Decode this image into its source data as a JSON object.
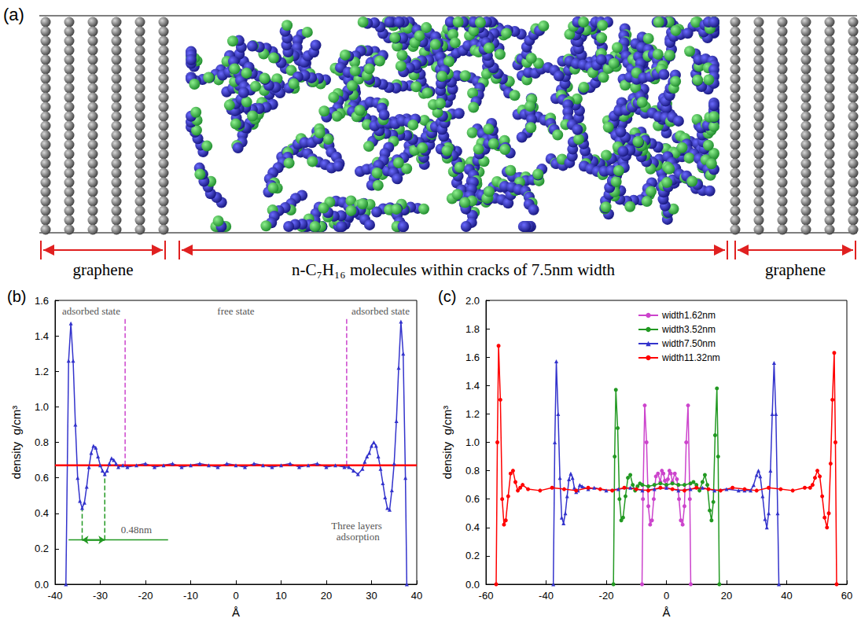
{
  "diagram": {
    "label": "(a)",
    "left_label": "graphene",
    "middle_label": "n-C₇H₁₆ molecules within cracks of 7.5nm width",
    "right_label": "graphene"
  },
  "chart_data": [
    {
      "panel": "(b)",
      "type": "line",
      "x_label": "Å",
      "y_label": "density  g/cm³",
      "xlim": [
        -40,
        40
      ],
      "xticks": [
        -40,
        -30,
        -20,
        -10,
        0,
        10,
        20,
        30,
        40
      ],
      "ylim": [
        0,
        1.6
      ],
      "yticks": [
        {
          "value": 0,
          "label": "0.0"
        },
        0.2,
        0.4,
        0.6,
        0.8,
        {
          "value": 1,
          "label": "1.0"
        },
        1.2,
        1.4,
        1.6
      ],
      "grid": false,
      "series": [
        {
          "color": "#3333cc",
          "marker": "triangle",
          "x": [
            -37.6,
            -37,
            -36.5,
            -36,
            -35.5,
            -35,
            -34.5,
            -34,
            -33.5,
            -33,
            -32.5,
            -32,
            -31.5,
            -31,
            -30.5,
            -30,
            -29.5,
            -29,
            -28.5,
            -28,
            -27.5,
            -27,
            -26.5,
            -26,
            -25,
            -24,
            -22,
            -20,
            -18,
            -16,
            -14,
            -12,
            -10,
            -8,
            -6,
            -4,
            -2,
            0,
            2,
            4,
            6,
            8,
            10,
            12,
            14,
            16,
            18,
            20,
            22,
            24,
            25,
            26,
            27,
            28,
            28.5,
            29,
            29.5,
            30,
            30.5,
            31,
            31.5,
            32,
            32.5,
            33,
            33.5,
            34,
            34.5,
            35,
            35.5,
            36,
            36.5,
            37,
            37.5,
            37.8
          ],
          "values": [
            0,
            1.26,
            1.47,
            1.26,
            0.9,
            0.6,
            0.47,
            0.43,
            0.46,
            0.55,
            0.66,
            0.74,
            0.78,
            0.77,
            0.72,
            0.67,
            0.64,
            0.62,
            0.64,
            0.68,
            0.71,
            0.7,
            0.68,
            0.66,
            0.67,
            0.66,
            0.67,
            0.68,
            0.66,
            0.67,
            0.68,
            0.66,
            0.67,
            0.68,
            0.67,
            0.66,
            0.68,
            0.67,
            0.66,
            0.68,
            0.67,
            0.66,
            0.67,
            0.68,
            0.66,
            0.67,
            0.68,
            0.66,
            0.67,
            0.66,
            0.66,
            0.64,
            0.62,
            0.65,
            0.69,
            0.72,
            0.74,
            0.78,
            0.8,
            0.78,
            0.72,
            0.65,
            0.57,
            0.49,
            0.43,
            0.42,
            0.53,
            0.68,
            0.92,
            1.22,
            1.48,
            1.3,
            0.6,
            0
          ]
        },
        {
          "color": "#ff0000",
          "marker": "none",
          "x": [
            -40,
            40
          ],
          "values": [
            0.67,
            0.67
          ]
        }
      ],
      "annotations": [
        {
          "text": "adsorbed state",
          "x": -32,
          "y": 1.54
        },
        {
          "text": "free state",
          "x": 0,
          "y": 1.54
        },
        {
          "text": "adsorbed state",
          "x": 32,
          "y": 1.54
        },
        {
          "text": "Three layers adsorption",
          "x": 27,
          "y": 0.3
        },
        {
          "text": "0.48nm",
          "x": -22,
          "y": 0.31
        }
      ],
      "guides": [
        {
          "x": [
            -34,
            -34
          ],
          "y": [
            0.25,
            0.43
          ],
          "color": "#229922",
          "line_style": "dashed"
        },
        {
          "x": [
            -29,
            -29
          ],
          "y": [
            0.25,
            0.62
          ],
          "color": "#229922",
          "line_style": "dashed"
        },
        {
          "x": [
            -37,
            -15
          ],
          "y": [
            0.25,
            0.25
          ],
          "color": "#229922",
          "line_style": "solid"
        },
        {
          "x": [
            -34,
            -29
          ],
          "y": [
            0.25,
            0.25
          ],
          "color": "#229922",
          "line_style": "solid",
          "marker": "arrow"
        },
        {
          "x": [
            -24.5,
            -24.5
          ],
          "y": [
            0.67,
            1.5
          ],
          "color": "#cc44cc",
          "line_style": "dashed"
        },
        {
          "x": [
            24.5,
            24.5
          ],
          "y": [
            0.67,
            1.5
          ],
          "color": "#cc44cc",
          "line_style": "dashed"
        }
      ]
    },
    {
      "panel": "(c)",
      "type": "line",
      "x_label": "Å",
      "y_label": "density  g/cm³",
      "xlim": [
        -60,
        60
      ],
      "xticks": [
        -60,
        -40,
        -20,
        0,
        20,
        40,
        60
      ],
      "ylim": [
        0,
        2
      ],
      "yticks": [
        {
          "value": 0,
          "label": "0.0"
        },
        0.2,
        0.4,
        0.6,
        0.8,
        {
          "value": 1,
          "label": "1.0"
        },
        1.2,
        1.4,
        1.6,
        1.8,
        {
          "value": 2,
          "label": "2.0"
        }
      ],
      "grid": false,
      "legend": "top",
      "series": [
        {
          "name": "width1.62nm",
          "color": "#cc44cc",
          "marker": "circle",
          "x": [
            -8.1,
            -7.8,
            -7.2,
            -6.6,
            -6,
            -5.4,
            -4.8,
            -4.2,
            -3.5,
            -2.8,
            -2,
            -1.5,
            -1,
            -0.5,
            0,
            0.5,
            1,
            1.5,
            2,
            2.8,
            3.5,
            4.2,
            4.8,
            5.4,
            6,
            6.6,
            7.2,
            7.8,
            8.1
          ],
          "values": [
            0,
            0.6,
            1.26,
            1.0,
            0.55,
            0.42,
            0.45,
            0.6,
            0.76,
            0.78,
            0.72,
            0.8,
            0.78,
            0.73,
            0.68,
            0.74,
            0.8,
            0.78,
            0.72,
            0.78,
            0.74,
            0.6,
            0.45,
            0.42,
            0.55,
            1.0,
            1.26,
            0.6,
            0
          ]
        },
        {
          "name": "width3.52nm",
          "color": "#229922",
          "marker": "circle",
          "x": [
            -17.6,
            -17.2,
            -16.8,
            -16.2,
            -15.6,
            -15,
            -14.4,
            -13.6,
            -12.8,
            -12,
            -11.2,
            -10.4,
            -9.6,
            -8.8,
            -8,
            -6,
            -4,
            -2,
            0,
            2,
            4,
            6,
            8,
            9,
            10,
            11,
            12,
            12.8,
            13.6,
            14.4,
            15,
            15.6,
            16.2,
            16.8,
            17.2,
            17.6
          ],
          "values": [
            0,
            0.9,
            1.37,
            1.1,
            0.6,
            0.45,
            0.47,
            0.62,
            0.75,
            0.77,
            0.7,
            0.66,
            0.69,
            0.71,
            0.7,
            0.69,
            0.7,
            0.71,
            0.7,
            0.71,
            0.7,
            0.7,
            0.71,
            0.72,
            0.7,
            0.66,
            0.72,
            0.77,
            0.7,
            0.52,
            0.45,
            0.58,
            1.05,
            1.38,
            0.9,
            0
          ]
        },
        {
          "name": "width7.50nm",
          "color": "#3333cc",
          "marker": "triangle",
          "x": [
            -37.6,
            -37.1,
            -36.6,
            -36,
            -35.4,
            -34.8,
            -34.2,
            -33.6,
            -33,
            -32.4,
            -31.8,
            -31.2,
            -30.6,
            -30,
            -29.4,
            -28.8,
            -28,
            -26,
            -24,
            -20,
            -16,
            -12,
            -8,
            -4,
            0,
            4,
            8,
            12,
            16,
            20,
            24,
            26,
            28,
            29,
            30,
            30.6,
            31.2,
            32,
            32.8,
            33.4,
            34,
            34.6,
            35.2,
            35.8,
            36.4,
            37,
            37.4
          ],
          "values": [
            0,
            1.0,
            1.57,
            1.2,
            0.75,
            0.47,
            0.43,
            0.5,
            0.62,
            0.74,
            0.78,
            0.75,
            0.68,
            0.65,
            0.66,
            0.7,
            0.69,
            0.67,
            0.68,
            0.66,
            0.67,
            0.68,
            0.66,
            0.67,
            0.68,
            0.66,
            0.67,
            0.68,
            0.66,
            0.67,
            0.66,
            0.66,
            0.66,
            0.7,
            0.77,
            0.8,
            0.76,
            0.62,
            0.46,
            0.4,
            0.5,
            0.8,
            1.2,
            1.56,
            1.2,
            0.5,
            0
          ]
        },
        {
          "name": "width11.32nm",
          "color": "#ff0000",
          "marker": "circle",
          "x": [
            -56.6,
            -56.2,
            -55.8,
            -55.2,
            -54.6,
            -54,
            -53.4,
            -52.6,
            -51.8,
            -51,
            -50.2,
            -49.4,
            -48.6,
            -47.8,
            -46,
            -42,
            -38,
            -34,
            -30,
            -26,
            -22,
            -18,
            -14,
            -10,
            -6,
            -2,
            2,
            6,
            10,
            14,
            18,
            22,
            26,
            30,
            34,
            38,
            42,
            46,
            47.8,
            48.6,
            49.4,
            50.2,
            51,
            51.8,
            52.6,
            53.4,
            54,
            54.6,
            55.2,
            55.8,
            56.2,
            56.6
          ],
          "values": [
            0,
            1.0,
            1.68,
            1.3,
            0.6,
            0.42,
            0.45,
            0.62,
            0.78,
            0.8,
            0.72,
            0.66,
            0.68,
            0.7,
            0.67,
            0.66,
            0.68,
            0.67,
            0.66,
            0.68,
            0.67,
            0.66,
            0.68,
            0.67,
            0.66,
            0.68,
            0.67,
            0.66,
            0.68,
            0.67,
            0.66,
            0.68,
            0.67,
            0.66,
            0.68,
            0.67,
            0.66,
            0.68,
            0.68,
            0.7,
            0.75,
            0.8,
            0.76,
            0.62,
            0.47,
            0.4,
            0.5,
            0.85,
            1.3,
            1.63,
            1.0,
            0
          ]
        }
      ]
    }
  ]
}
